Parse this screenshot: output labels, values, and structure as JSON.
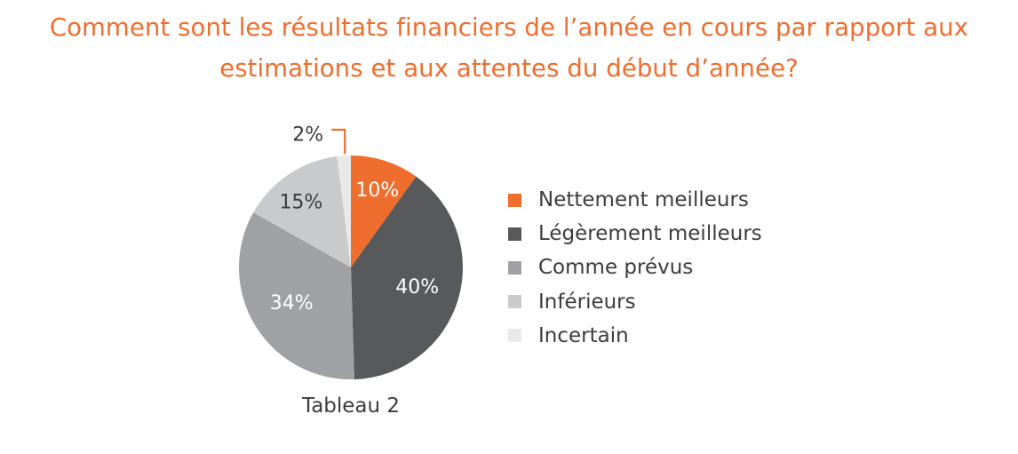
{
  "chart_data": {
    "type": "pie",
    "title_lines": [
      "Comment sont les résultats financiers de l’année en cours par rapport aux",
      "estimations et aux attentes du début d’année?"
    ],
    "caption": "Tableau 2",
    "legend_position": "right",
    "slices": [
      {
        "label": "Nettement meilleurs",
        "value": 10,
        "display": "10%",
        "color": "#ef6d2d",
        "label_color": "#ffffff"
      },
      {
        "label": "Légèrement meilleurs",
        "value": 40,
        "display": "40%",
        "color": "#58595b",
        "label_color": "#ffffff"
      },
      {
        "label": "Comme prévus",
        "value": 34,
        "display": "34%",
        "color": "#a0a1a4",
        "label_color": "#ffffff"
      },
      {
        "label": "Inférieurs",
        "value": 15,
        "display": "15%",
        "color": "#c9cacc",
        "label_color": "#3c3c3c"
      },
      {
        "label": "Incertain",
        "value": 2,
        "display": "2%",
        "color": "#e9e9ea",
        "label_color": "#3c3c3c",
        "callout_color": "#ef6d2d"
      }
    ]
  }
}
